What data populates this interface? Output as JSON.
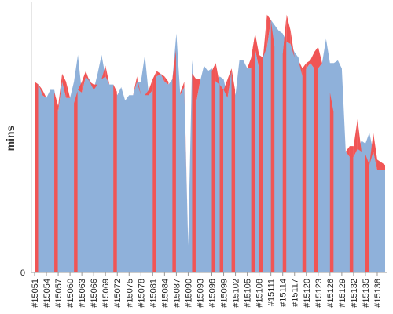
{
  "chart_data": {
    "type": "area",
    "title": "",
    "xlabel": "",
    "ylabel": "mins",
    "ylim": [
      0,
      100
    ],
    "y_ticks": [
      {
        "value": 0,
        "label": "0"
      }
    ],
    "grid": false,
    "legend": "none",
    "colors": {
      "blue": "#8fb1da",
      "red": "#f05555",
      "axis": "#cccccc",
      "tick": "#999999"
    },
    "x": [
      "#15051",
      "#15052",
      "#15053",
      "#15054",
      "#15055",
      "#15056",
      "#15057",
      "#15058",
      "#15059",
      "#15060",
      "#15061",
      "#15062",
      "#15063",
      "#15064",
      "#15065",
      "#15066",
      "#15067",
      "#15068",
      "#15069",
      "#15070",
      "#15071",
      "#15072",
      "#15073",
      "#15074",
      "#15075",
      "#15076",
      "#15077",
      "#15078",
      "#15079",
      "#15080",
      "#15081",
      "#15082",
      "#15083",
      "#15084",
      "#15085",
      "#15086",
      "#15087",
      "#15088",
      "#15089",
      "#15090",
      "#15091",
      "#15092",
      "#15093",
      "#15094",
      "#15095",
      "#15096",
      "#15097",
      "#15098",
      "#15099",
      "#15100",
      "#15101",
      "#15102",
      "#15103",
      "#15104",
      "#15105",
      "#15106",
      "#15107",
      "#15108",
      "#15109",
      "#15110",
      "#15111",
      "#15112",
      "#15113",
      "#15114",
      "#15115",
      "#15116",
      "#15117",
      "#15118",
      "#15119",
      "#15120",
      "#15121",
      "#15122",
      "#15123",
      "#15124",
      "#15125",
      "#15126",
      "#15127",
      "#15128",
      "#15129",
      "#15130",
      "#15131",
      "#15132",
      "#15133",
      "#15134",
      "#15135",
      "#15136",
      "#15137",
      "#15138",
      "#15139",
      "#15140"
    ],
    "x_tick_labels": [
      "#15051",
      "#15054",
      "#15057",
      "#15060",
      "#15063",
      "#15066",
      "#15069",
      "#15072",
      "#15075",
      "#15078",
      "#15081",
      "#15084",
      "#15087",
      "#15090",
      "#15093",
      "#15096",
      "#15099",
      "#15102",
      "#15105",
      "#15108",
      "#15111",
      "#15114",
      "#15117",
      "#15120",
      "#15123",
      "#15126",
      "#15129",
      "#15132",
      "#15135",
      "#15138"
    ],
    "series": [
      {
        "color": "blue",
        "values": [
          70,
          70,
          66,
          65,
          68,
          68,
          60,
          71,
          65,
          65,
          71,
          81,
          67,
          73,
          72,
          68,
          74,
          81,
          73,
          70,
          70,
          66,
          69,
          64,
          66,
          66,
          71,
          71,
          81,
          66,
          68,
          73,
          74,
          71,
          70,
          72,
          89,
          66,
          69,
          10,
          79,
          63,
          71,
          77,
          75,
          76,
          71,
          73,
          72,
          65,
          75,
          66,
          79,
          79,
          76,
          76,
          83,
          76,
          81,
          84,
          94,
          92,
          90,
          89,
          86,
          85,
          82,
          80,
          73,
          76,
          78,
          76,
          76,
          78,
          87,
          78,
          78,
          79,
          76,
          45,
          43,
          43,
          46,
          49,
          48,
          52,
          45,
          38,
          38,
          38
        ]
      },
      {
        "color": "red",
        "values": [
          71,
          70,
          68,
          65,
          67,
          67,
          62,
          74,
          71,
          65,
          63,
          68,
          71,
          75,
          71,
          70,
          70,
          72,
          77,
          70,
          70,
          67,
          68,
          64,
          66,
          66,
          73,
          66,
          66,
          68,
          72,
          75,
          74,
          73,
          71,
          72,
          84,
          67,
          71,
          10,
          74,
          72,
          72,
          74,
          73,
          75,
          78,
          70,
          68,
          72,
          76,
          67,
          79,
          78,
          76,
          80,
          89,
          81,
          80,
          96,
          94,
          83,
          80,
          81,
          96,
          90,
          80,
          79,
          76,
          78,
          79,
          82,
          84,
          78,
          78,
          67,
          59,
          45,
          46,
          45,
          47,
          47,
          57,
          45,
          44,
          40,
          52,
          42,
          41,
          40
        ]
      }
    ],
    "red_highlight_indices": [
      0,
      5,
      10,
      20,
      30,
      35,
      40,
      45,
      47,
      50,
      55,
      57,
      60,
      63,
      68,
      71,
      75,
      80,
      84
    ]
  }
}
